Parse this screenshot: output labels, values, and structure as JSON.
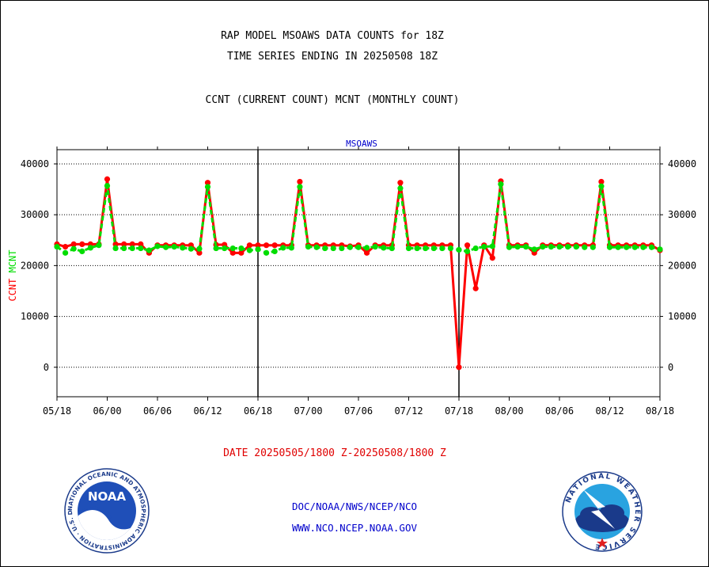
{
  "header": {
    "title_line1": "RAP MODEL MSOAWS DATA COUNTS for 18Z",
    "title_line2": "TIME SERIES ENDING IN 20250508 18Z",
    "subtitle": "CCNT (CURRENT COUNT) MCNT (MONTHLY COUNT)"
  },
  "chart_data": {
    "type": "line",
    "title": "MSOAWS",
    "ylabel_ccnt": "CCNT",
    "ylabel_mcnt": "MCNT",
    "ylim": [
      -5800,
      42800
    ],
    "yticks": [
      0,
      10000,
      20000,
      30000,
      40000
    ],
    "ytick_labels": [
      "0",
      "10000",
      "20000",
      "30000",
      "40000"
    ],
    "xticks": [
      "05/18",
      "06/00",
      "06/06",
      "06/12",
      "06/18",
      "07/00",
      "07/06",
      "07/12",
      "07/18",
      "08/00",
      "08/06",
      "08/12",
      "08/18"
    ],
    "xlabel": "DATE 20250505/1800 Z-20250508/1800 Z",
    "x_hours_start": 0,
    "x_hours_end": 72,
    "grid": true,
    "colors": {
      "ccnt": "#ff0000",
      "mcnt": "#00dd00",
      "title": "#0000cc",
      "axis": "#000000"
    },
    "series": [
      {
        "name": "CCNT",
        "values": [
          24200,
          23700,
          24200,
          24200,
          24200,
          24200,
          37000,
          24200,
          24200,
          24200,
          24200,
          22500,
          24000,
          24000,
          24000,
          24000,
          24000,
          22500,
          36300,
          24100,
          24100,
          22500,
          22500,
          24000,
          24000,
          24000,
          24000,
          24000,
          24000,
          36500,
          24000,
          24000,
          24000,
          24000,
          24000,
          23800,
          24000,
          22500,
          24000,
          24000,
          24000,
          36300,
          24000,
          24000,
          24000,
          24000,
          24000,
          24000,
          0,
          24000,
          15500,
          24000,
          21500,
          36600,
          24000,
          24000,
          24000,
          22500,
          24000,
          24000,
          24000,
          24000,
          24000,
          24000,
          24000,
          36500,
          24000,
          24000,
          24000,
          24000,
          24000,
          24000,
          23000
        ]
      },
      {
        "name": "MCNT",
        "values": [
          23700,
          22500,
          23300,
          22800,
          23500,
          24000,
          35700,
          23400,
          23400,
          23400,
          23400,
          23000,
          23800,
          23600,
          23700,
          23500,
          23300,
          23300,
          35500,
          23400,
          23400,
          23400,
          23400,
          23000,
          23200,
          22500,
          22800,
          23500,
          23500,
          35500,
          23700,
          23600,
          23400,
          23400,
          23400,
          23600,
          23600,
          23500,
          23700,
          23500,
          23400,
          35200,
          23400,
          23400,
          23400,
          23400,
          23400,
          23400,
          23100,
          22800,
          23400,
          23700,
          23800,
          36000,
          23600,
          23700,
          23700,
          23200,
          23700,
          23700,
          23700,
          23700,
          23700,
          23600,
          23600,
          35600,
          23600,
          23600,
          23600,
          23600,
          23600,
          23600,
          23200
        ]
      }
    ]
  },
  "footer": {
    "org": "DOC/NOAA/NWS/NCEP/NCO",
    "url": "WWW.NCO.NCEP.NOAA.GOV"
  },
  "logos": {
    "noaa_name": "noaa-logo",
    "noaa_text": "NOAA",
    "noaa_ring_text": "NATIONAL OCEANIC AND ATMOSPHERIC ADMINISTRATION · U.S. DEPARTMENT OF COMMERCE",
    "nws_name": "nws-logo",
    "nws_ring_text": "NATIONAL WEATHER SERVICE"
  }
}
